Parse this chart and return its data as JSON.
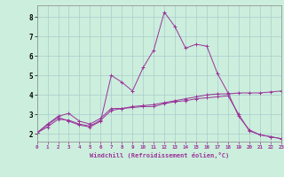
{
  "xlabel": "Windchill (Refroidissement éolien,°C)",
  "xlim": [
    0,
    23
  ],
  "ylim": [
    1.6,
    8.6
  ],
  "xticks": [
    0,
    1,
    2,
    3,
    4,
    5,
    6,
    7,
    8,
    9,
    10,
    11,
    12,
    13,
    14,
    15,
    16,
    17,
    18,
    19,
    20,
    21,
    22,
    23
  ],
  "yticks": [
    2,
    3,
    4,
    5,
    6,
    7,
    8
  ],
  "background_color": "#cceedd",
  "grid_color": "#aacccc",
  "line_color": "#993399",
  "line1_x": [
    0,
    1,
    2,
    3,
    4,
    5,
    6,
    7,
    8,
    9,
    10,
    11,
    12,
    13,
    14,
    15,
    16,
    17,
    18,
    19,
    20,
    21,
    22,
    23
  ],
  "line1_y": [
    2.05,
    2.5,
    2.9,
    3.05,
    2.65,
    2.5,
    2.8,
    3.3,
    3.3,
    3.4,
    3.45,
    3.5,
    3.6,
    3.7,
    3.8,
    3.9,
    4.0,
    4.05,
    4.05,
    4.1,
    4.1,
    4.1,
    4.15,
    4.2
  ],
  "line2_x": [
    0,
    1,
    2,
    3,
    4,
    5,
    6,
    7,
    8,
    9,
    10,
    11,
    12,
    13,
    14,
    15,
    16,
    17,
    18,
    19,
    20,
    21,
    22,
    23
  ],
  "line2_y": [
    2.05,
    2.45,
    2.85,
    2.65,
    2.45,
    2.35,
    2.65,
    5.0,
    4.65,
    4.2,
    5.4,
    6.3,
    8.25,
    7.5,
    6.4,
    6.6,
    6.5,
    5.1,
    4.1,
    2.9,
    2.2,
    1.95,
    1.85,
    1.75
  ],
  "line3_x": [
    0,
    1,
    2,
    3,
    4,
    5,
    6,
    7,
    8,
    9,
    10,
    11,
    12,
    13,
    14,
    15,
    16,
    17,
    18,
    19,
    20,
    21,
    22,
    23
  ],
  "line3_y": [
    2.05,
    2.35,
    2.75,
    2.7,
    2.5,
    2.4,
    2.7,
    3.2,
    3.3,
    3.35,
    3.4,
    3.4,
    3.55,
    3.65,
    3.7,
    3.8,
    3.85,
    3.9,
    3.95,
    3.0,
    2.15,
    1.95,
    1.85,
    1.75
  ]
}
